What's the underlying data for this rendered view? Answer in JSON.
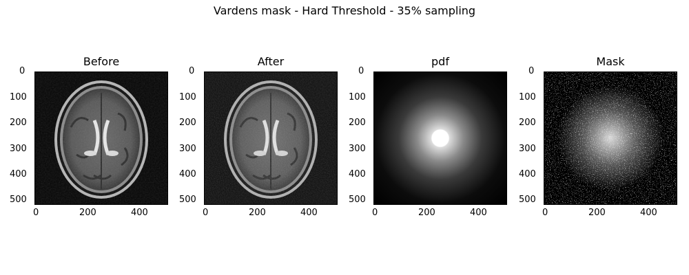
{
  "figure": {
    "suptitle": "Vardens mask - Hard Threshold - 35% sampling"
  },
  "chart_data": [
    {
      "type": "heatmap",
      "title": "Before",
      "xlabel": "",
      "ylabel": "",
      "xlim": [
        0,
        512
      ],
      "ylim": [
        512,
        0
      ],
      "x_ticks": [
        "0",
        "200",
        "400"
      ],
      "y_ticks": [
        "0",
        "100",
        "200",
        "300",
        "400",
        "500"
      ],
      "content": "brain MRI axial slice (grayscale)"
    },
    {
      "type": "heatmap",
      "title": "After",
      "xlabel": "",
      "ylabel": "",
      "xlim": [
        0,
        512
      ],
      "ylim": [
        512,
        0
      ],
      "x_ticks": [
        "0",
        "200",
        "400"
      ],
      "y_ticks": [
        "0",
        "100",
        "200",
        "300",
        "400",
        "500"
      ],
      "content": "reconstructed brain MRI slice (grayscale)"
    },
    {
      "type": "heatmap",
      "title": "pdf",
      "xlabel": "",
      "ylabel": "",
      "xlim": [
        0,
        512
      ],
      "ylim": [
        512,
        0
      ],
      "x_ticks": [
        "0",
        "200",
        "400"
      ],
      "y_ticks": [
        "0",
        "100",
        "200",
        "300",
        "400",
        "500"
      ],
      "content": "radial sampling probability density, bright center"
    },
    {
      "type": "heatmap",
      "title": "Mask",
      "xlabel": "",
      "ylabel": "",
      "xlim": [
        0,
        512
      ],
      "ylim": [
        512,
        0
      ],
      "x_ticks": [
        "0",
        "200",
        "400"
      ],
      "y_ticks": [
        "0",
        "100",
        "200",
        "300",
        "400",
        "500"
      ],
      "content": "binary random undersampling mask, denser at center"
    }
  ]
}
